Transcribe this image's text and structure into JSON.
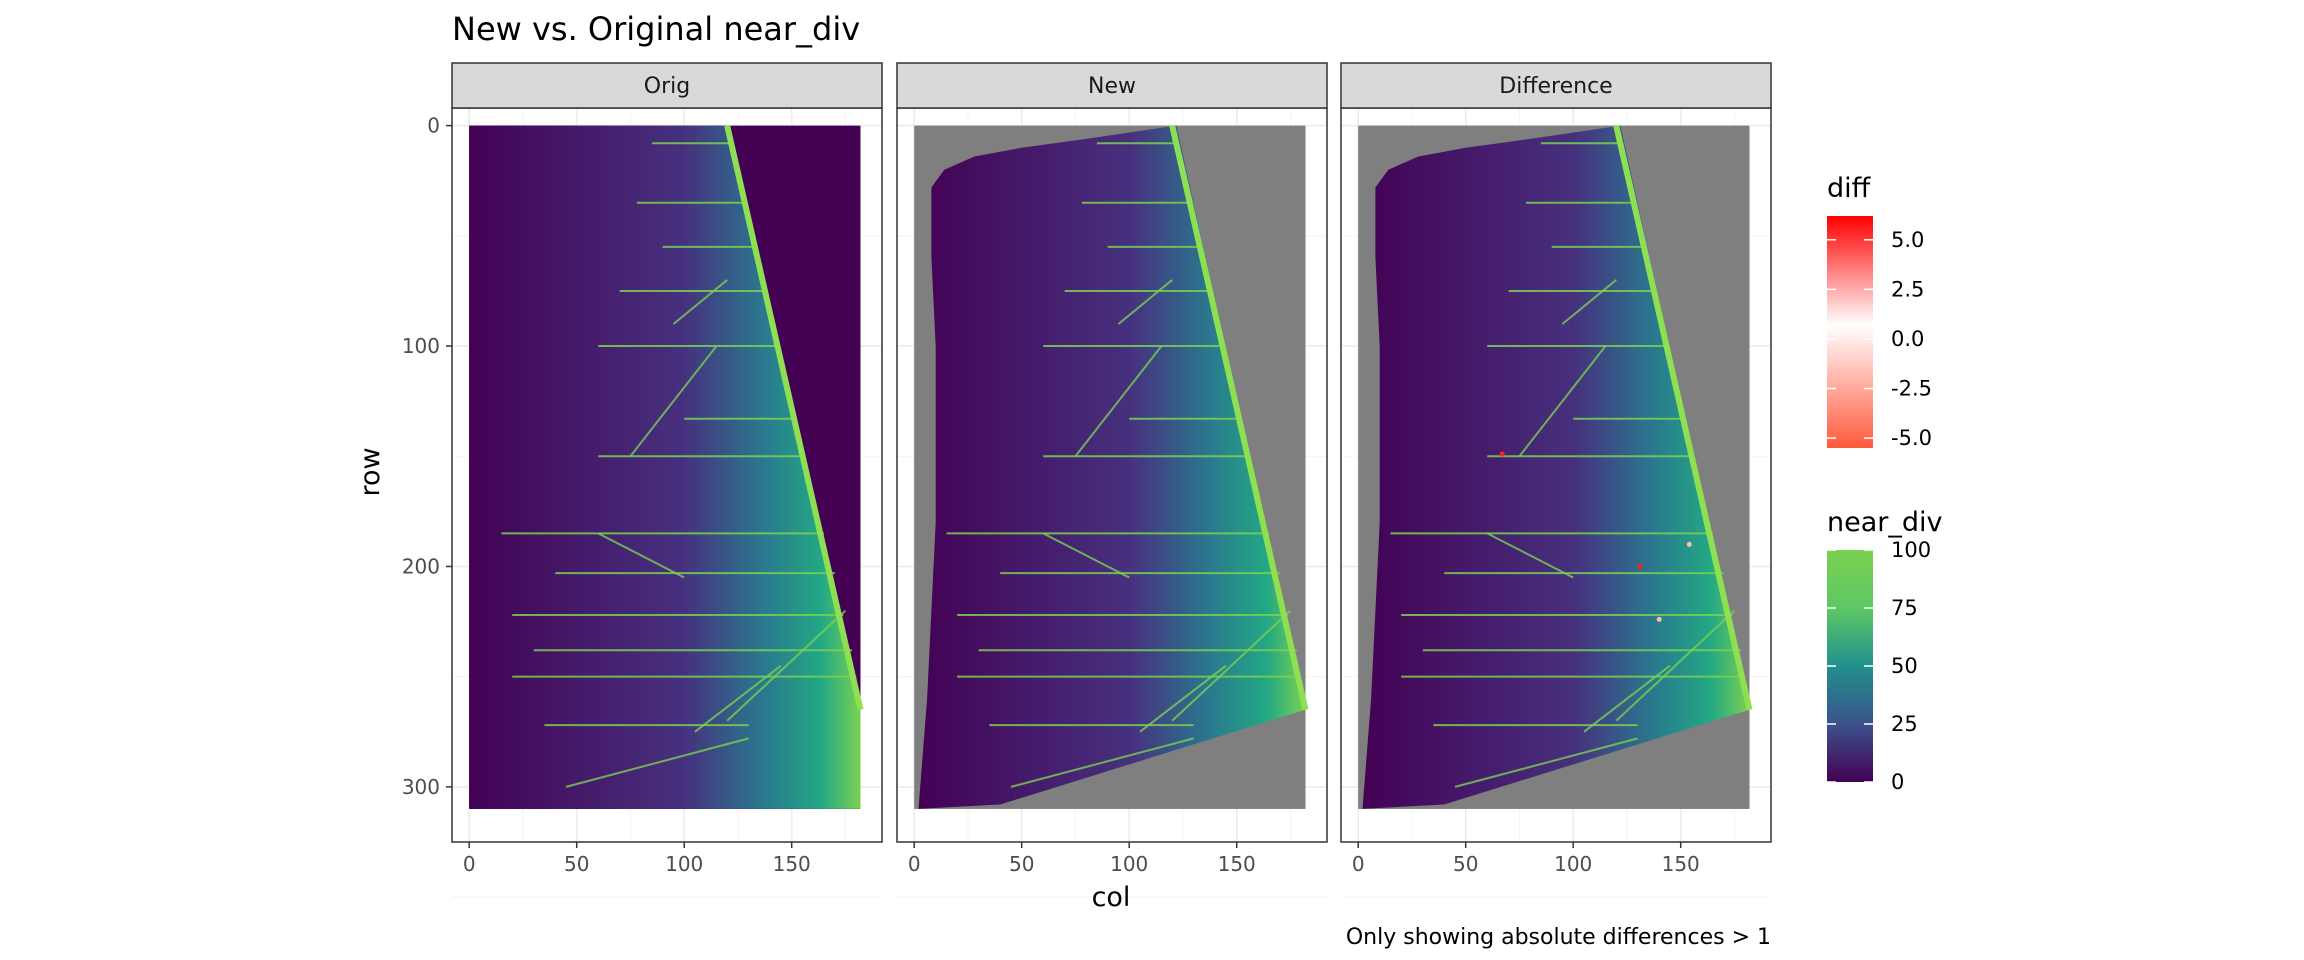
{
  "chart_data": {
    "type": "heatmap",
    "title": "New vs. Original near_div",
    "caption": "Only showing absolute differences > 1",
    "xlabel": "col",
    "ylabel": "row",
    "xlim": [
      -8,
      192
    ],
    "ylim": [
      -8,
      325
    ],
    "y_reversed": true,
    "x_ticks": [
      {
        "value": 0,
        "label": "0"
      },
      {
        "value": 50,
        "label": "50"
      },
      {
        "value": 100,
        "label": "100"
      },
      {
        "value": 150,
        "label": "150"
      }
    ],
    "y_ticks": [
      {
        "value": 0,
        "label": "0"
      },
      {
        "value": 100,
        "label": "100"
      },
      {
        "value": 200,
        "label": "200"
      },
      {
        "value": 300,
        "label": "300"
      }
    ],
    "grid": true,
    "extent": {
      "x": [
        0,
        182
      ],
      "y": [
        0,
        310
      ]
    },
    "panels": [
      {
        "label": "Orig",
        "fill_color": "#440154",
        "fill_region": "full"
      },
      {
        "label": "New",
        "fill_color": "#7f7f7f",
        "fill_region": "full"
      },
      {
        "label": "Difference",
        "fill_color": "#7f7f7f",
        "fill_region": "full"
      }
    ],
    "data_region_polygon": [
      [
        0,
        0
      ],
      [
        120,
        0
      ],
      [
        182,
        265
      ],
      [
        182,
        310
      ],
      [
        0,
        310
      ]
    ],
    "new_region_polygon": [
      [
        8,
        28
      ],
      [
        14,
        20
      ],
      [
        28,
        14
      ],
      [
        50,
        10
      ],
      [
        80,
        6
      ],
      [
        122,
        0
      ],
      [
        182,
        265
      ],
      [
        40,
        308
      ],
      [
        2,
        310
      ],
      [
        6,
        260
      ],
      [
        10,
        180
      ],
      [
        10,
        100
      ],
      [
        8,
        60
      ]
    ],
    "bright_edge": [
      [
        120,
        0
      ],
      [
        182,
        265
      ]
    ],
    "horizontal_features": [
      {
        "row": 8,
        "x_start": 85,
        "x_end": 122
      },
      {
        "row": 35,
        "x_start": 78,
        "x_end": 128
      },
      {
        "row": 55,
        "x_start": 90,
        "x_end": 133
      },
      {
        "row": 75,
        "x_start": 70,
        "x_end": 138
      },
      {
        "row": 100,
        "x_start": 60,
        "x_end": 143
      },
      {
        "row": 133,
        "x_start": 100,
        "x_end": 151
      },
      {
        "row": 150,
        "x_start": 60,
        "x_end": 155
      },
      {
        "row": 185,
        "x_start": 15,
        "x_end": 165
      },
      {
        "row": 203,
        "x_start": 40,
        "x_end": 170
      },
      {
        "row": 222,
        "x_start": 20,
        "x_end": 174
      },
      {
        "row": 238,
        "x_start": 30,
        "x_end": 178
      },
      {
        "row": 250,
        "x_start": 20,
        "x_end": 180
      },
      {
        "row": 272,
        "x_start": 35,
        "x_end": 130
      }
    ],
    "diagonal_features": [
      [
        [
          95,
          90
        ],
        [
          120,
          70
        ]
      ],
      [
        [
          75,
          150
        ],
        [
          115,
          100
        ]
      ],
      [
        [
          120,
          270
        ],
        [
          175,
          220
        ]
      ],
      [
        [
          105,
          275
        ],
        [
          145,
          245
        ]
      ],
      [
        [
          45,
          300
        ],
        [
          130,
          278
        ]
      ],
      [
        [
          60,
          185
        ],
        [
          100,
          205
        ]
      ]
    ],
    "diff_points": [
      {
        "x": 67,
        "y": 149,
        "diff": 5
      },
      {
        "x": 131,
        "y": 200,
        "diff": 4
      },
      {
        "x": 154,
        "y": 190,
        "diff": 2
      },
      {
        "x": 140,
        "y": 224,
        "diff": 2
      }
    ],
    "legends": [
      {
        "title": "diff",
        "colors": [
          "#ff5a3c",
          "#ffffff",
          "#ff0000"
        ],
        "range": [
          -5.5,
          6.2
        ],
        "breaks": [
          5.0,
          2.5,
          0.0,
          -2.5,
          -5.0
        ],
        "labels": [
          "5.0",
          "2.5",
          "0.0",
          "-2.5",
          "-5.0"
        ]
      },
      {
        "title": "near_div",
        "colors": [
          "#440154",
          "#3b528b",
          "#21908d",
          "#5dc863",
          "#7ad151"
        ],
        "range": [
          0,
          100
        ],
        "breaks": [
          100,
          75,
          50,
          25,
          0
        ],
        "labels": [
          "100",
          "75",
          "50",
          "25",
          "0"
        ]
      }
    ]
  }
}
